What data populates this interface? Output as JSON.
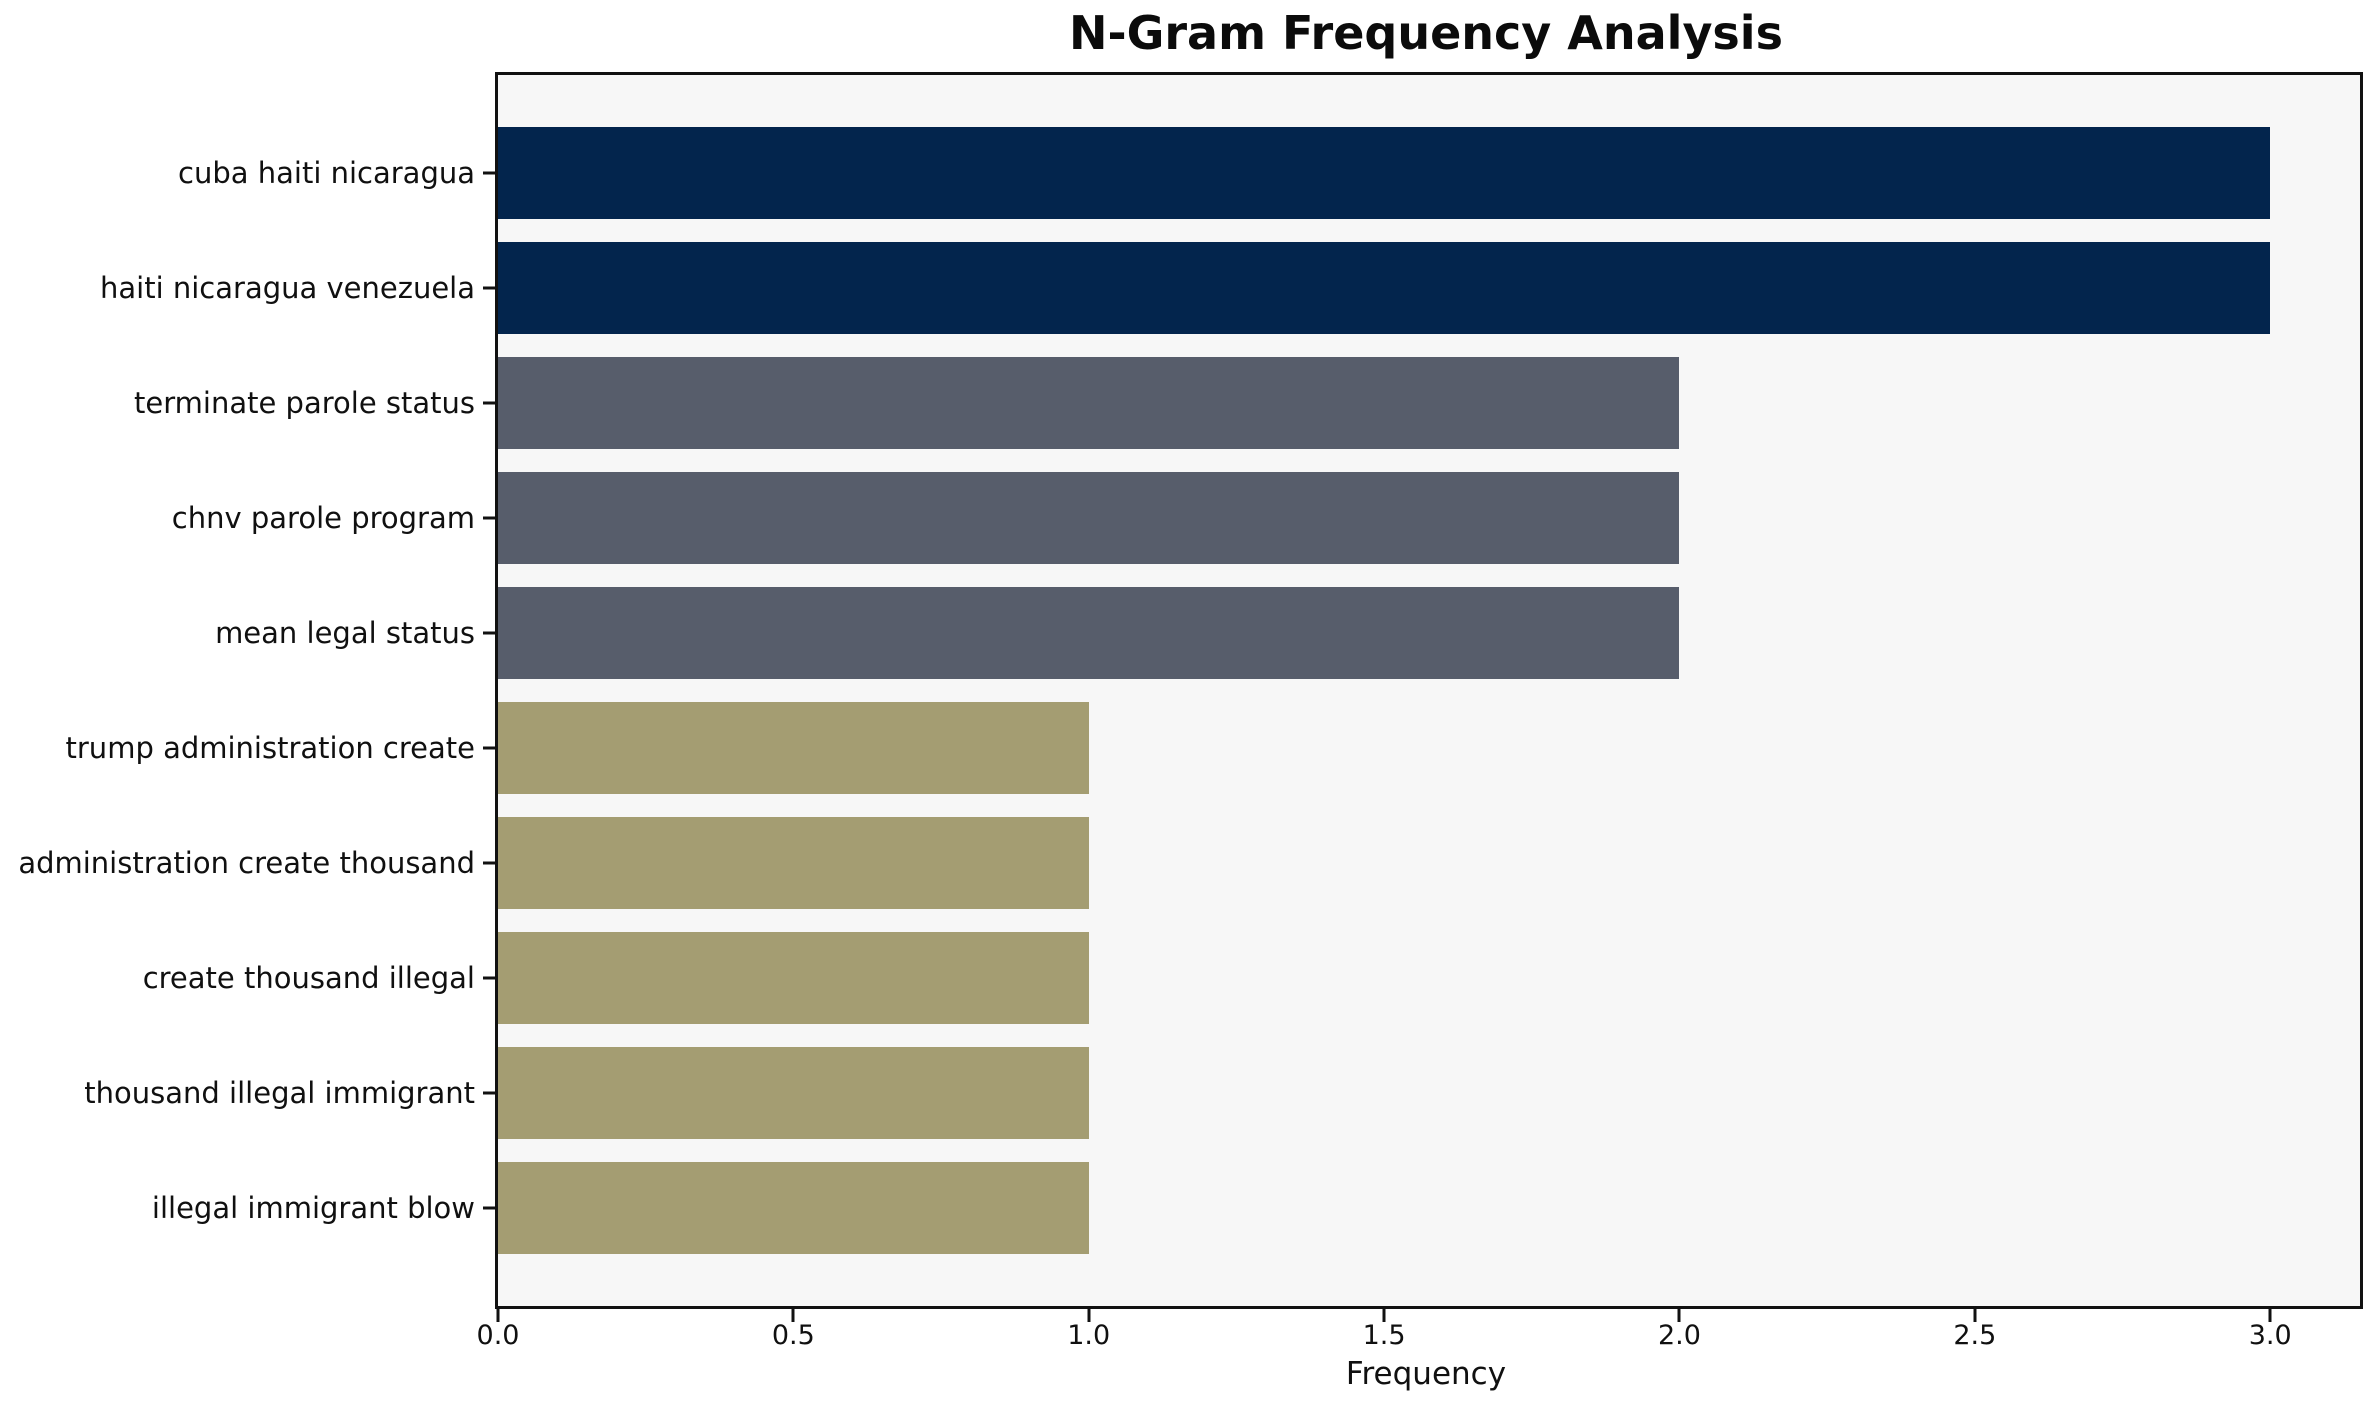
{
  "chart_data": {
    "type": "bar",
    "orientation": "horizontal",
    "title": "N-Gram Frequency Analysis",
    "xlabel": "Frequency",
    "ylabel": "",
    "categories": [
      "cuba haiti nicaragua",
      "haiti nicaragua venezuela",
      "terminate parole status",
      "chnv parole program",
      "mean legal status",
      "trump administration create",
      "administration create thousand",
      "create thousand illegal",
      "thousand illegal immigrant",
      "illegal immigrant blow"
    ],
    "values": [
      3,
      3,
      2,
      2,
      2,
      1,
      1,
      1,
      1,
      1
    ],
    "bar_colors": [
      "#03254d",
      "#03254d",
      "#575d6b",
      "#575d6b",
      "#575d6b",
      "#a49d72",
      "#a49d72",
      "#a49d72",
      "#a49d72",
      "#a49d72"
    ],
    "palette": {
      "frequency_3": "#03254d",
      "frequency_2": "#575d6b",
      "frequency_1": "#a49d72"
    },
    "x_ticks": [
      0.0,
      0.5,
      1.0,
      1.5,
      2.0,
      2.5,
      3.0
    ],
    "x_tick_labels": [
      "0.0",
      "0.5",
      "1.0",
      "1.5",
      "2.0",
      "2.5",
      "3.0"
    ],
    "xlim": [
      0,
      3.152
    ],
    "grid": false,
    "legend": null,
    "plot_background": "#f7f7f7",
    "figure_background": "#ffffff",
    "spine_color": "#111111"
  }
}
